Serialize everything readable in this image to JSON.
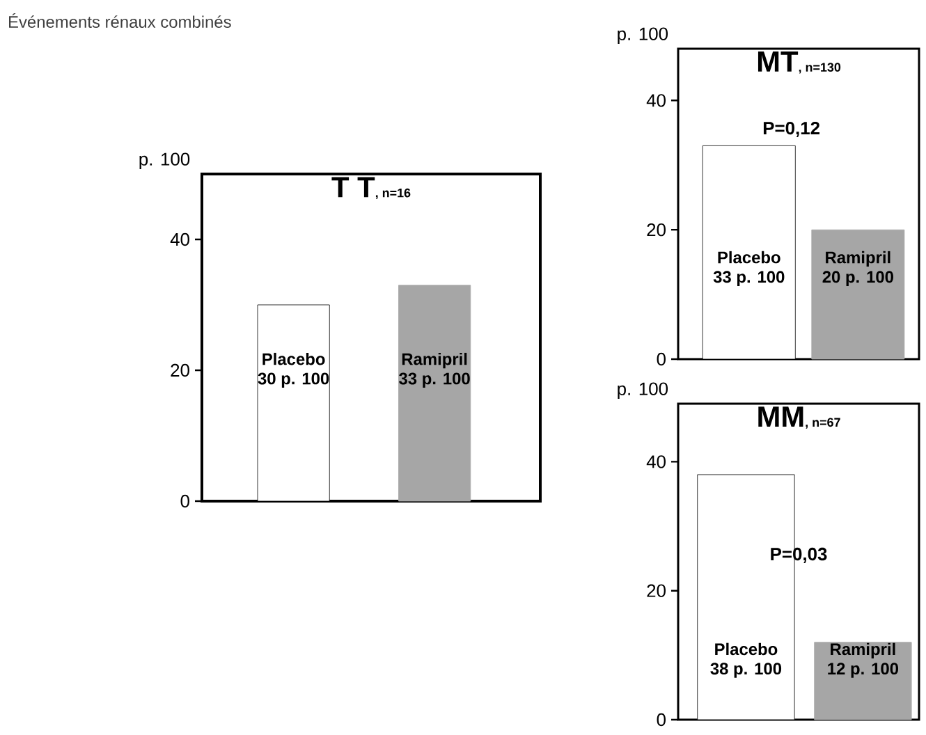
{
  "chart_data": [
    {
      "type": "bar",
      "title": "T T",
      "subtitle": ", n=16",
      "ylabel": "p. 100",
      "categories": [
        "Placebo",
        "Ramipril"
      ],
      "values": [
        30,
        33
      ],
      "value_labels": [
        "30 p. 100",
        "33 p. 100"
      ],
      "colors": [
        "#ffffff",
        "#a6a6a6"
      ],
      "ylim": [
        0,
        50
      ],
      "yticks": [
        0,
        20,
        40
      ],
      "annotations": [
        "Événements rénaux combinés"
      ]
    },
    {
      "type": "bar",
      "title": "MT",
      "subtitle": ", n=130",
      "ylabel": "p. 100",
      "categories": [
        "Placebo",
        "Ramipril"
      ],
      "values": [
        33,
        20
      ],
      "value_labels": [
        "33 p. 100",
        "20 p. 100"
      ],
      "colors": [
        "#ffffff",
        "#a6a6a6"
      ],
      "ylim": [
        0,
        48
      ],
      "yticks": [
        0,
        20,
        40
      ],
      "annotations": [
        "P=0,12"
      ]
    },
    {
      "type": "bar",
      "title": "MM",
      "subtitle": ", n=67",
      "ylabel": "p. 100",
      "categories": [
        "Placebo",
        "Ramipril"
      ],
      "values": [
        38,
        12
      ],
      "value_labels": [
        "38 p. 100",
        "12 p. 100"
      ],
      "colors": [
        "#ffffff",
        "#a6a6a6"
      ],
      "ylim": [
        0,
        49
      ],
      "yticks": [
        0,
        20,
        40
      ],
      "annotations": [
        "P=0,03"
      ]
    }
  ]
}
